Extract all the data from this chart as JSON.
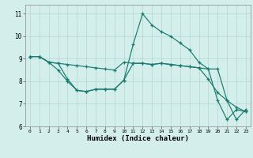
{
  "xlabel": "Humidex (Indice chaleur)",
  "background_color": "#d4eeec",
  "line_color": "#1a7a6e",
  "ylim": [
    6,
    11.4
  ],
  "xlim": [
    -0.5,
    23.5
  ],
  "yticks": [
    6,
    7,
    8,
    9,
    10,
    11
  ],
  "xticks": [
    0,
    1,
    2,
    3,
    4,
    5,
    6,
    7,
    8,
    9,
    10,
    11,
    12,
    13,
    14,
    15,
    16,
    17,
    18,
    19,
    20,
    21,
    22,
    23
  ],
  "series1_x": [
    0,
    1,
    2,
    3,
    4,
    5,
    6,
    7,
    8,
    9,
    10,
    11,
    12,
    13,
    14,
    15,
    16,
    17,
    18,
    19,
    20,
    21,
    22,
    23
  ],
  "series1_y": [
    9.1,
    9.1,
    8.85,
    8.8,
    8.1,
    7.6,
    7.55,
    7.65,
    7.65,
    7.65,
    8.05,
    9.65,
    11.0,
    10.5,
    10.2,
    10.0,
    9.7,
    9.4,
    8.85,
    8.55,
    7.15,
    6.3,
    6.75,
    6.65
  ],
  "series2_x": [
    0,
    1,
    2,
    3,
    4,
    5,
    6,
    7,
    8,
    9,
    10,
    11,
    12,
    13,
    14,
    15,
    16,
    17,
    18,
    19,
    20,
    21,
    22,
    23
  ],
  "series2_y": [
    9.1,
    9.1,
    8.85,
    8.8,
    8.75,
    8.7,
    8.65,
    8.6,
    8.55,
    8.5,
    8.85,
    8.8,
    8.8,
    8.75,
    8.8,
    8.75,
    8.7,
    8.65,
    8.6,
    8.55,
    8.55,
    7.15,
    6.3,
    6.75
  ],
  "series3_x": [
    0,
    1,
    2,
    3,
    4,
    5,
    6,
    7,
    8,
    9,
    10,
    11,
    12,
    13,
    14,
    15,
    16,
    17,
    18,
    19,
    20,
    21,
    22,
    23
  ],
  "series3_y": [
    9.1,
    9.1,
    8.85,
    8.5,
    8.0,
    7.6,
    7.55,
    7.65,
    7.65,
    7.65,
    8.05,
    8.8,
    8.8,
    8.75,
    8.8,
    8.75,
    8.7,
    8.65,
    8.6,
    8.1,
    7.5,
    7.15,
    6.85,
    6.65
  ]
}
